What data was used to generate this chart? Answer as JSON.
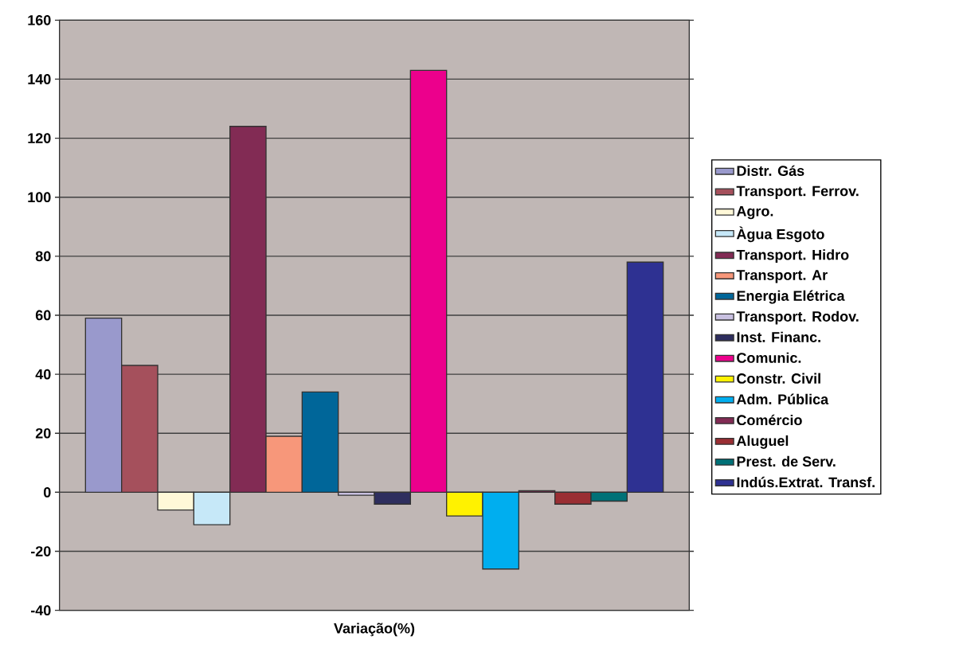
{
  "chart_data": {
    "type": "bar",
    "categories": [
      "Variação(%)"
    ],
    "series": [
      {
        "name": "Distr. Gás",
        "color": "#9999cc",
        "values": [
          59
        ]
      },
      {
        "name": "Transport. Ferrov.",
        "color": "#a5505c",
        "values": [
          43
        ]
      },
      {
        "name": "Agro.",
        "color": "#fff8d8",
        "values": [
          -6
        ]
      },
      {
        "name": "Àgua Esgoto",
        "color": "#c6e8f8",
        "values": [
          -11
        ]
      },
      {
        "name": "Transport. Hidro",
        "color": "#822b54",
        "values": [
          124
        ]
      },
      {
        "name": "Transport. Ar",
        "color": "#f7977a",
        "values": [
          19
        ]
      },
      {
        "name": "Energia Elétrica",
        "color": "#006699",
        "values": [
          34
        ]
      },
      {
        "name": "Transport. Rodov.",
        "color": "#c8c0e0",
        "values": [
          -1
        ]
      },
      {
        "name": "Inst. Financ.",
        "color": "#2e2e5e",
        "values": [
          -4
        ]
      },
      {
        "name": "Comunic.",
        "color": "#ec008c",
        "values": [
          143
        ]
      },
      {
        "name": "Constr. Civil",
        "color": "#fff200",
        "values": [
          -8
        ]
      },
      {
        "name": "Adm. Pública",
        "color": "#00aeef",
        "values": [
          -26
        ]
      },
      {
        "name": "Comércio",
        "color": "#822b54",
        "values": [
          0.5
        ]
      },
      {
        "name": "Aluguel",
        "color": "#9a2e33",
        "values": [
          -4
        ]
      },
      {
        "name": "Prest. de Serv.",
        "color": "#007177",
        "values": [
          -3
        ]
      },
      {
        "name": "Indús.Extrat. Transf.",
        "color": "#2e3192",
        "values": [
          78
        ]
      }
    ],
    "ylim": [
      -40,
      160
    ],
    "yticks": [
      -40,
      -20,
      0,
      20,
      40,
      60,
      80,
      100,
      120,
      140,
      160
    ],
    "grid": "y",
    "legend": "right"
  }
}
